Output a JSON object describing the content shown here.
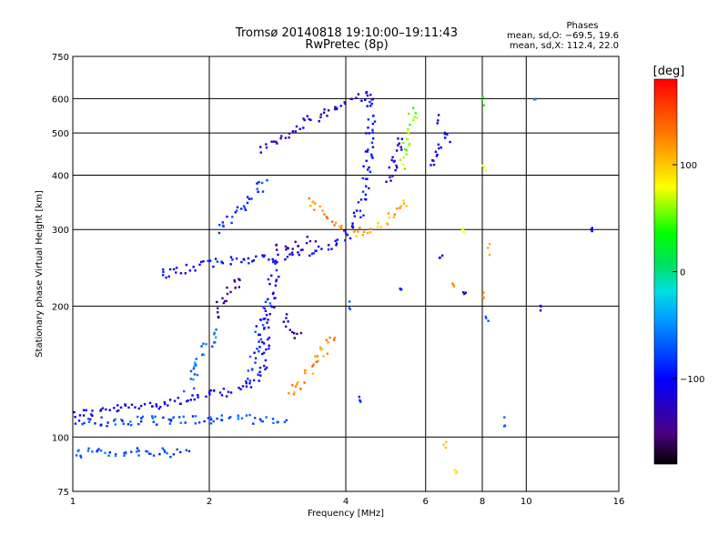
{
  "chart_data": {
    "type": "scatter",
    "title": "Tromsø 20140818 19:10:00–19:11:43",
    "subtitle": "RwPretec (8p)",
    "xlabel": "Frequency [MHz]",
    "ylabel": "Stationary phase Virtual Height [km]",
    "x_scale": "log",
    "y_scale": "log",
    "xlim": [
      1,
      16
    ],
    "ylim": [
      75,
      750
    ],
    "x_ticks": [
      "1",
      "2",
      "4",
      "6",
      "8",
      "10",
      "16"
    ],
    "y_ticks": [
      "75",
      "100",
      "200",
      "300",
      "400",
      "500",
      "600",
      "750"
    ],
    "grid": true,
    "stats": {
      "heading": "Phases",
      "line_o": "mean, sd,O: −69.5, 19.6",
      "line_x": "mean, sd,X: 112.4, 22.0"
    },
    "colorbar": {
      "label": "[deg]",
      "range": [
        -180,
        180
      ],
      "ticks": [
        "100",
        "0",
        "−100"
      ],
      "tick_values": [
        100,
        0,
        -100
      ]
    },
    "traces": [
      {
        "phase": -110,
        "points": [
          [
            1.0,
            113
          ],
          [
            1.1,
            114
          ],
          [
            1.25,
            116
          ],
          [
            1.45,
            118
          ],
          [
            1.7,
            121
          ],
          [
            1.95,
            124
          ],
          [
            2.2,
            127
          ],
          [
            2.45,
            131
          ],
          [
            2.6,
            140
          ],
          [
            2.65,
            160
          ],
          [
            2.7,
            190
          ],
          [
            2.75,
            220
          ],
          [
            2.8,
            245
          ],
          [
            2.85,
            255
          ]
        ]
      },
      {
        "phase": -100,
        "points": [
          [
            1.55,
            235
          ],
          [
            1.75,
            242
          ],
          [
            2.0,
            250
          ],
          [
            2.3,
            256
          ],
          [
            2.6,
            258
          ],
          [
            2.9,
            260
          ],
          [
            3.3,
            265
          ],
          [
            3.7,
            275
          ],
          [
            4.0,
            290
          ],
          [
            4.25,
            320
          ],
          [
            4.4,
            370
          ],
          [
            4.5,
            450
          ],
          [
            4.55,
            540
          ],
          [
            4.6,
            620
          ]
        ]
      },
      {
        "phase": -120,
        "points": [
          [
            2.6,
            455
          ],
          [
            2.9,
            490
          ],
          [
            3.2,
            520
          ],
          [
            3.5,
            545
          ],
          [
            3.9,
            575
          ],
          [
            4.3,
            605
          ],
          [
            4.6,
            625
          ]
        ]
      },
      {
        "phase": -130,
        "points": [
          [
            2.8,
            275
          ],
          [
            3.0,
            270
          ],
          [
            3.2,
            280
          ],
          [
            3.4,
            290
          ]
        ]
      },
      {
        "phase": -140,
        "points": [
          [
            2.9,
            190
          ],
          [
            3.0,
            180
          ],
          [
            3.1,
            170
          ],
          [
            3.2,
            172
          ]
        ]
      },
      {
        "phase": -150,
        "points": [
          [
            2.05,
            190
          ],
          [
            2.15,
            205
          ],
          [
            2.25,
            220
          ],
          [
            2.35,
            235
          ]
        ]
      },
      {
        "phase": -80,
        "points": [
          [
            2.45,
            135
          ],
          [
            2.5,
            150
          ],
          [
            2.55,
            165
          ],
          [
            2.6,
            180
          ],
          [
            2.65,
            195
          ],
          [
            2.7,
            210
          ]
        ]
      },
      {
        "phase": -85,
        "points": [
          [
            2.1,
            300
          ],
          [
            2.3,
            330
          ],
          [
            2.5,
            360
          ],
          [
            2.7,
            390
          ]
        ]
      },
      {
        "phase": -75,
        "points": [
          [
            1.0,
            108
          ],
          [
            1.5,
            109
          ],
          [
            2.0,
            110
          ],
          [
            2.5,
            110
          ],
          [
            3.0,
            109
          ]
        ]
      },
      {
        "phase": -75,
        "points": [
          [
            1.0,
            92
          ],
          [
            1.2,
            92
          ],
          [
            1.5,
            92
          ],
          [
            1.8,
            92
          ]
        ]
      },
      {
        "phase": -60,
        "points": [
          [
            1.8,
            130
          ],
          [
            1.9,
            150
          ],
          [
            2.0,
            165
          ],
          [
            2.1,
            180
          ]
        ]
      },
      {
        "phase": 120,
        "points": [
          [
            3.0,
            125
          ],
          [
            3.2,
            135
          ],
          [
            3.4,
            145
          ],
          [
            3.6,
            160
          ],
          [
            3.8,
            175
          ]
        ]
      },
      {
        "phase": 110,
        "points": [
          [
            4.1,
            295
          ],
          [
            4.4,
            298
          ],
          [
            4.7,
            305
          ],
          [
            5.0,
            320
          ],
          [
            5.3,
            335
          ],
          [
            5.5,
            350
          ]
        ]
      },
      {
        "phase": 120,
        "points": [
          [
            3.3,
            350
          ],
          [
            3.6,
            325
          ],
          [
            3.8,
            310
          ],
          [
            4.0,
            300
          ]
        ]
      },
      {
        "phase": 60,
        "points": [
          [
            5.3,
            420
          ],
          [
            5.4,
            460
          ],
          [
            5.5,
            500
          ],
          [
            5.6,
            540
          ],
          [
            5.65,
            580
          ]
        ]
      },
      {
        "phase": -110,
        "points": [
          [
            6.2,
            420
          ],
          [
            6.4,
            450
          ],
          [
            6.6,
            480
          ],
          [
            6.8,
            510
          ]
        ]
      },
      {
        "phase": -120,
        "points": [
          [
            5.0,
            380
          ],
          [
            5.1,
            420
          ],
          [
            5.2,
            460
          ],
          [
            5.3,
            500
          ]
        ]
      }
    ],
    "sparse_points": [
      {
        "x": 5.3,
        "y": 220,
        "phase": -90
      },
      {
        "x": 6.5,
        "y": 260,
        "phase": -110
      },
      {
        "x": 6.9,
        "y": 220,
        "phase": 120
      },
      {
        "x": 7.3,
        "y": 210,
        "phase": -130
      },
      {
        "x": 8.1,
        "y": 210,
        "phase": 120
      },
      {
        "x": 8.2,
        "y": 185,
        "phase": -70
      },
      {
        "x": 10.7,
        "y": 195,
        "phase": -110
      },
      {
        "x": 14.0,
        "y": 302,
        "phase": -100
      },
      {
        "x": 8.0,
        "y": 590,
        "phase": 40
      },
      {
        "x": 10.5,
        "y": 610,
        "phase": -60
      },
      {
        "x": 6.6,
        "y": 95,
        "phase": 100
      },
      {
        "x": 8.9,
        "y": 108,
        "phase": -70
      },
      {
        "x": 7.0,
        "y": 85,
        "phase": 90
      },
      {
        "x": 4.3,
        "y": 122,
        "phase": -90
      },
      {
        "x": 4.1,
        "y": 200,
        "phase": -70
      },
      {
        "x": 7.3,
        "y": 300,
        "phase": 80
      },
      {
        "x": 8.3,
        "y": 270,
        "phase": 110
      },
      {
        "x": 6.4,
        "y": 540,
        "phase": -120
      },
      {
        "x": 8.1,
        "y": 420,
        "phase": 80
      }
    ]
  }
}
